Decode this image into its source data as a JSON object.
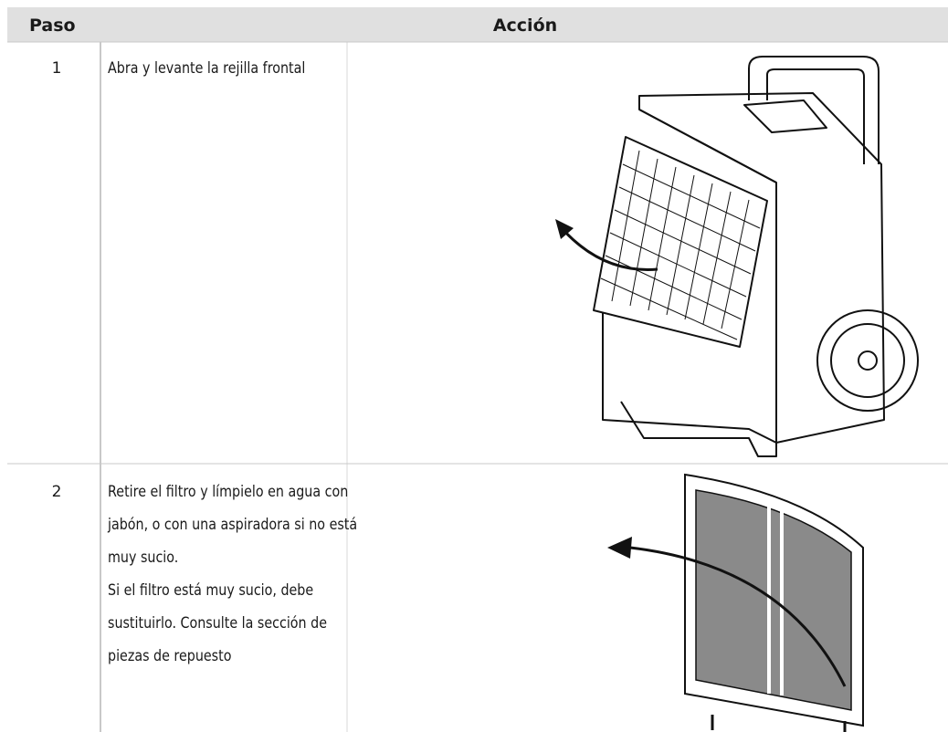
{
  "table": {
    "header": [
      "Paso",
      "Acción"
    ],
    "rows": [
      {
        "step": "1",
        "lines": [
          "Abra y levante la rejilla frontal"
        ]
      },
      {
        "step": "2",
        "lines": [
          "Retire el filtro y límpielo en agua con",
          "jabón, o con una aspiradora si no está",
          "muy sucio.",
          "Si el filtro está muy sucio, debe",
          "sustituirlo. Consulte la sección de",
          "piezas de repuesto"
        ]
      }
    ]
  }
}
